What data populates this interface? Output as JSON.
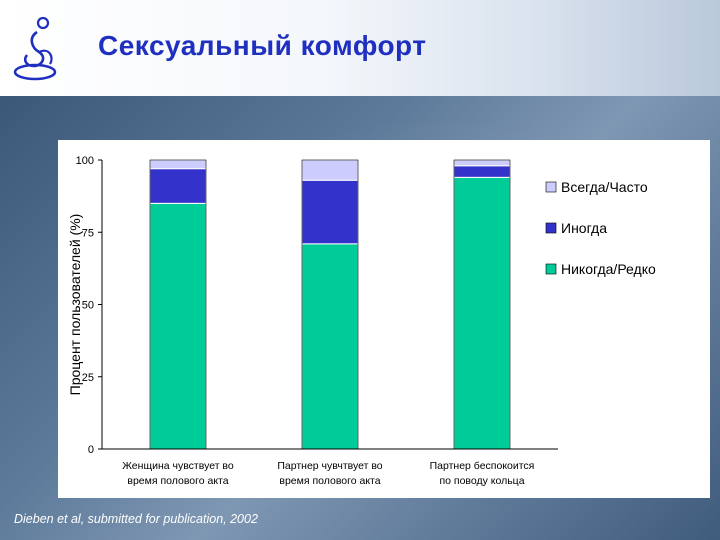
{
  "header": {
    "title": "Сексуальный комфорт"
  },
  "colors": {
    "title": "#1f2fbf",
    "never_rarely": "#00cc99",
    "sometimes": "#3333cc",
    "always_often": "#ccccff"
  },
  "chart_data": {
    "type": "bar",
    "stacked": true,
    "title": "",
    "xlabel": "",
    "ylabel": "Процент пользователей (%)",
    "ylim": [
      0,
      100
    ],
    "yticks": [
      0,
      25,
      50,
      75,
      100
    ],
    "grid": false,
    "legend_position": "right",
    "categories": [
      "Женщина чувствует во время полового акта",
      "Партнер чувчтвует во время полового акта",
      "Партнер беспокоится по поводу кольца"
    ],
    "category_lines": [
      [
        "Женщина чувствует во",
        "время полового акта"
      ],
      [
        "Партнер чувчтвует во",
        "время полового акта"
      ],
      [
        "Партнер беспокоится",
        "по поводу кольца"
      ]
    ],
    "series": [
      {
        "name": "Никогда/Редко",
        "color": "#00cc99",
        "values": [
          85,
          71,
          94
        ]
      },
      {
        "name": "Иногда",
        "color": "#3333cc",
        "values": [
          12,
          22,
          4
        ]
      },
      {
        "name": "Всегда/Часто",
        "color": "#ccccff",
        "values": [
          3,
          7,
          2
        ]
      }
    ],
    "legend_order": [
      "Всегда/Часто",
      "Иногда",
      "Никогда/Редко"
    ]
  },
  "citation": "Dieben et al, submitted for publication, 2002"
}
